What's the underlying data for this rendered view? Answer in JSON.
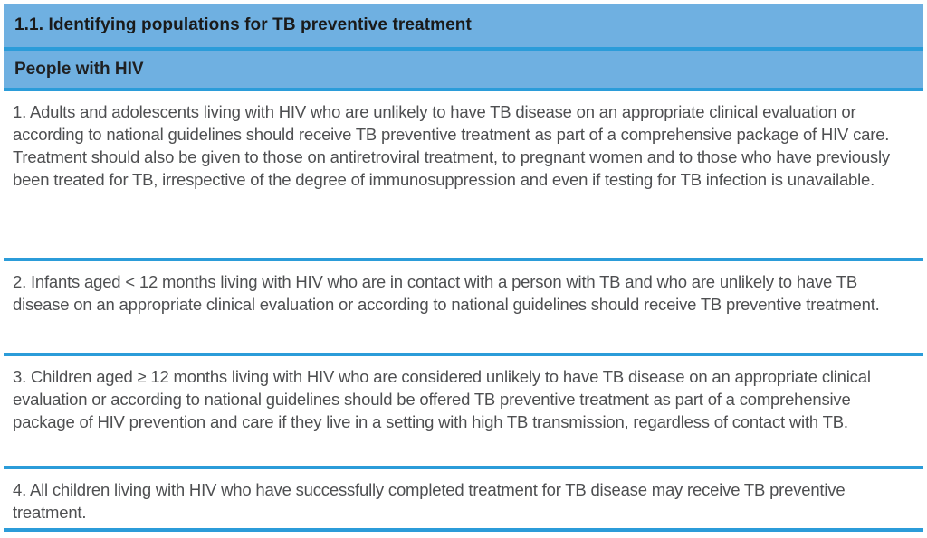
{
  "table": {
    "title": "1.1. Identifying populations for TB preventive treatment",
    "subtitle": "People with HIV",
    "rows": [
      {
        "text": "1. Adults and adolescents living with HIV who are unlikely to have TB disease on an appropriate clinical evaluation or according to national guidelines should receive TB preventive treatment as part of a comprehensive package of HIV care. Treatment should also be given to those on antiretroviral treatment, to pregnant women and to those who have previously been treated for TB, irrespective of the degree of immunosuppression and even if testing for TB infection is unavailable."
      },
      {
        "text": "2. Infants aged < 12 months living with HIV who are in contact with a person with TB and who are unlikely to have TB disease on an appropriate clinical evaluation or according to national guidelines should receive TB preventive treatment."
      },
      {
        "text": "3. Children aged ≥ 12 months living with HIV who are considered unlikely to have TB disease on an appropriate clinical evaluation or according to national guidelines should be offered TB preventive treatment as part of a comprehensive package of HIV prevention and care if they live in a setting with high TB transmission, regardless of contact with TB."
      },
      {
        "text": "4. All children living with HIV who have successfully completed treatment for TB disease may receive TB preventive treatment."
      }
    ],
    "colors": {
      "row_bg": "#6fb0e1",
      "rule": "#2b9cd9",
      "title_text": "#1a1a1a",
      "body_text": "#4e4f51"
    }
  }
}
